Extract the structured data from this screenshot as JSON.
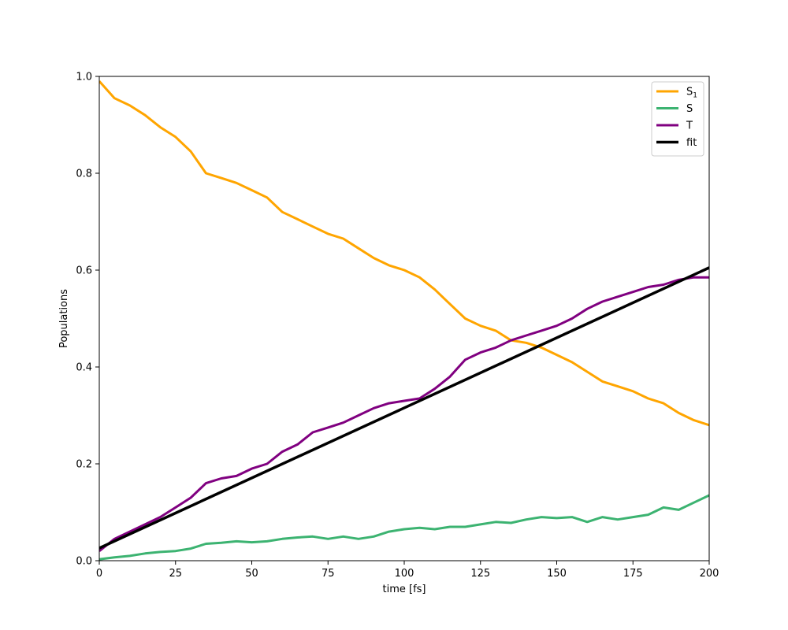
{
  "chart_data": {
    "type": "line",
    "title": "",
    "xlabel": "time [fs]",
    "ylabel": "Populations",
    "xlim": [
      0,
      200
    ],
    "ylim": [
      0,
      1.0
    ],
    "xticks": [
      "0",
      "25",
      "50",
      "75",
      "100",
      "125",
      "150",
      "175",
      "200"
    ],
    "yticks": [
      "0.0",
      "0.2",
      "0.4",
      "0.6",
      "0.8",
      "1.0"
    ],
    "grid": false,
    "legend_position": "top-right",
    "series": [
      {
        "name": "S",
        "name_sub": "1",
        "color": "#ffa500",
        "x": [
          0,
          5,
          10,
          15,
          20,
          25,
          30,
          35,
          40,
          45,
          50,
          55,
          60,
          65,
          70,
          75,
          80,
          85,
          90,
          95,
          100,
          105,
          110,
          115,
          120,
          125,
          130,
          135,
          140,
          145,
          150,
          155,
          160,
          165,
          170,
          175,
          180,
          185,
          190,
          195,
          200
        ],
        "y": [
          0.99,
          0.955,
          0.94,
          0.92,
          0.895,
          0.875,
          0.845,
          0.8,
          0.79,
          0.78,
          0.765,
          0.75,
          0.72,
          0.705,
          0.69,
          0.675,
          0.665,
          0.645,
          0.625,
          0.61,
          0.6,
          0.585,
          0.56,
          0.53,
          0.5,
          0.485,
          0.475,
          0.455,
          0.45,
          0.44,
          0.425,
          0.41,
          0.39,
          0.37,
          0.36,
          0.35,
          0.335,
          0.325,
          0.305,
          0.29,
          0.28
        ]
      },
      {
        "name": "S",
        "color": "#3cb371",
        "x": [
          0,
          5,
          10,
          15,
          20,
          25,
          30,
          35,
          40,
          45,
          50,
          55,
          60,
          65,
          70,
          75,
          80,
          85,
          90,
          95,
          100,
          105,
          110,
          115,
          120,
          125,
          130,
          135,
          140,
          145,
          150,
          155,
          160,
          165,
          170,
          175,
          180,
          185,
          190,
          195,
          200
        ],
        "y": [
          0.003,
          0.007,
          0.01,
          0.015,
          0.018,
          0.02,
          0.025,
          0.035,
          0.037,
          0.04,
          0.038,
          0.04,
          0.045,
          0.048,
          0.05,
          0.045,
          0.05,
          0.045,
          0.05,
          0.06,
          0.065,
          0.068,
          0.065,
          0.07,
          0.07,
          0.075,
          0.08,
          0.078,
          0.085,
          0.09,
          0.088,
          0.09,
          0.08,
          0.09,
          0.085,
          0.09,
          0.095,
          0.11,
          0.105,
          0.12,
          0.135
        ]
      },
      {
        "name": "T",
        "color": "#800080",
        "x": [
          0,
          5,
          10,
          15,
          20,
          25,
          30,
          35,
          40,
          45,
          50,
          55,
          60,
          65,
          70,
          75,
          80,
          85,
          90,
          95,
          100,
          105,
          110,
          115,
          120,
          125,
          130,
          135,
          140,
          145,
          150,
          155,
          160,
          165,
          170,
          175,
          180,
          185,
          190,
          195,
          200
        ],
        "y": [
          0.02,
          0.045,
          0.06,
          0.075,
          0.09,
          0.11,
          0.13,
          0.16,
          0.17,
          0.175,
          0.19,
          0.2,
          0.225,
          0.24,
          0.265,
          0.275,
          0.285,
          0.3,
          0.315,
          0.325,
          0.33,
          0.335,
          0.355,
          0.38,
          0.415,
          0.43,
          0.44,
          0.455,
          0.465,
          0.475,
          0.485,
          0.5,
          0.52,
          0.535,
          0.545,
          0.555,
          0.565,
          0.57,
          0.58,
          0.585,
          0.585
        ]
      },
      {
        "name": "fit",
        "color": "#000000",
        "x": [
          0,
          200
        ],
        "y": [
          0.026,
          0.605
        ]
      }
    ]
  }
}
